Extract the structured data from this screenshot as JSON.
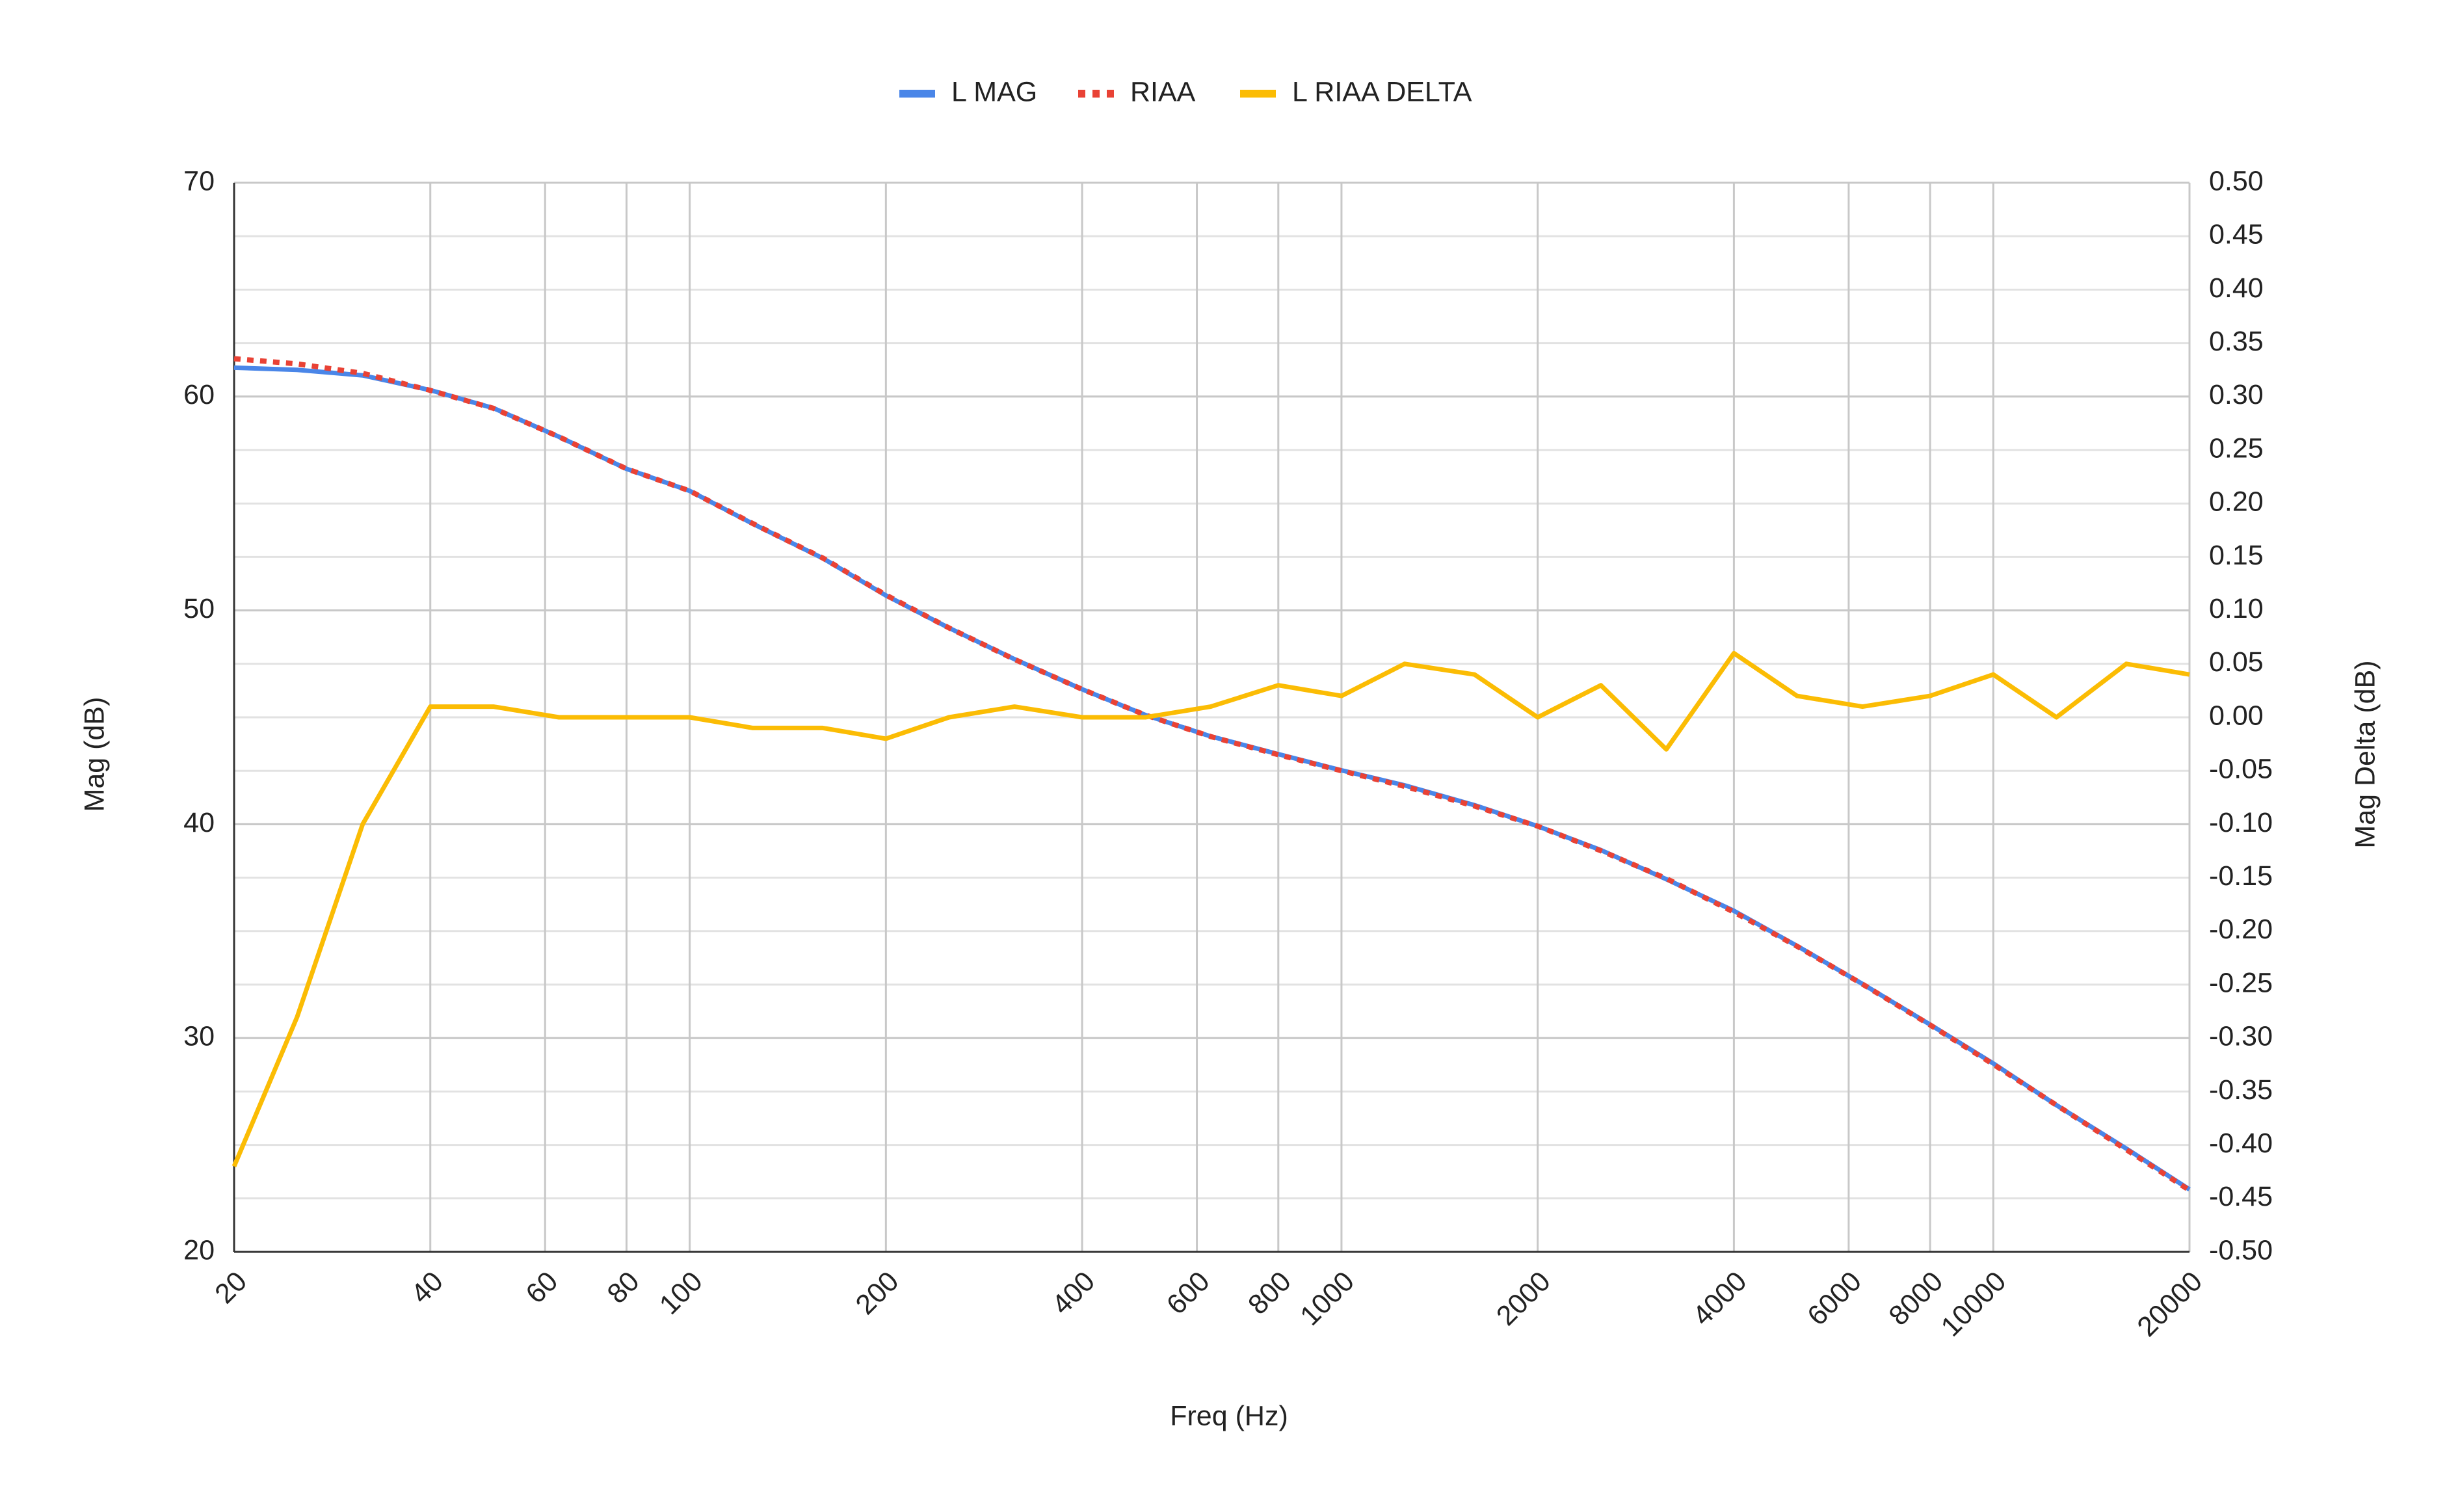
{
  "chart_data": {
    "type": "line",
    "x_label": "Freq (Hz)",
    "y_label": "Mag (dB)",
    "y2_label": "Mag Delta (dB)",
    "x": [
      20,
      25,
      31.5,
      40,
      50,
      63,
      80,
      100,
      125,
      160,
      200,
      250,
      315,
      400,
      500,
      630,
      800,
      1000,
      1250,
      1600,
      2000,
      2500,
      3150,
      4000,
      5000,
      6300,
      8000,
      10000,
      12500,
      16000,
      20000
    ],
    "series": [
      {
        "name": "L MAG",
        "color": "#4a86e8",
        "dash": false,
        "axis": "y",
        "values": [
          61.35,
          61.25,
          60.99,
          60.3,
          59.46,
          58.12,
          56.62,
          55.59,
          54.05,
          52.44,
          50.7,
          49.18,
          47.72,
          46.31,
          45.11,
          44.11,
          43.28,
          42.52,
          41.82,
          40.89,
          39.91,
          38.79,
          37.43,
          35.95,
          34.31,
          32.53,
          30.63,
          28.81,
          26.86,
          24.83,
          22.92
        ]
      },
      {
        "name": "RIAA",
        "color": "#e94235",
        "dash": true,
        "axis": "y",
        "values": [
          61.77,
          61.53,
          61.09,
          60.29,
          59.45,
          58.12,
          56.62,
          55.59,
          54.06,
          52.45,
          50.72,
          49.18,
          47.71,
          46.31,
          45.11,
          44.1,
          43.25,
          42.5,
          41.77,
          40.85,
          39.91,
          38.76,
          37.46,
          35.89,
          34.29,
          32.52,
          30.61,
          28.77,
          26.86,
          24.78,
          22.88
        ]
      },
      {
        "name": "L RIAA DELTA",
        "color": "#fbbc04",
        "dash": false,
        "axis": "y2",
        "values": [
          -0.42,
          -0.28,
          -0.1,
          0.01,
          0.01,
          0.0,
          0.0,
          0.0,
          -0.01,
          -0.01,
          -0.02,
          0.0,
          0.01,
          0.0,
          0.0,
          0.01,
          0.03,
          0.02,
          0.05,
          0.04,
          0.0,
          0.03,
          -0.03,
          0.06,
          0.02,
          0.01,
          0.02,
          0.04,
          0.0,
          0.05,
          0.04
        ]
      }
    ],
    "xlog": true,
    "xlim": [
      20,
      20000
    ],
    "xticks": [
      20,
      40,
      60,
      80,
      100,
      200,
      400,
      600,
      800,
      1000,
      2000,
      4000,
      6000,
      8000,
      10000,
      20000
    ],
    "ylim": [
      20,
      70
    ],
    "yticks": [
      20,
      30,
      40,
      50,
      60,
      70
    ],
    "y2lim": [
      -0.5,
      0.5
    ],
    "y2ticks": [
      {
        "value": -0.5,
        "label": "-0.50"
      },
      {
        "value": -0.45,
        "label": "-0.45"
      },
      {
        "value": -0.4,
        "label": "-0.40"
      },
      {
        "value": -0.35,
        "label": "-0.35"
      },
      {
        "value": -0.3,
        "label": "-0.30"
      },
      {
        "value": -0.25,
        "label": "-0.25"
      },
      {
        "value": -0.2,
        "label": "-0.20"
      },
      {
        "value": -0.15,
        "label": "-0.15"
      },
      {
        "value": -0.1,
        "label": "-0.10"
      },
      {
        "value": -0.05,
        "label": "-0.05"
      },
      {
        "value": 0,
        "label": "0.00"
      },
      {
        "value": 0.05,
        "label": "0.05"
      },
      {
        "value": 0.1,
        "label": "0.10"
      },
      {
        "value": 0.15,
        "label": "0.15"
      },
      {
        "value": 0.2,
        "label": "0.20"
      },
      {
        "value": 0.25,
        "label": "0.25"
      },
      {
        "value": 0.3,
        "label": "0.30"
      },
      {
        "value": 0.35,
        "label": "0.35"
      },
      {
        "value": 0.4,
        "label": "0.40"
      },
      {
        "value": 0.45,
        "label": "0.45"
      },
      {
        "value": 0.5,
        "label": "0.50"
      }
    ],
    "grid": true,
    "legend": "top"
  }
}
